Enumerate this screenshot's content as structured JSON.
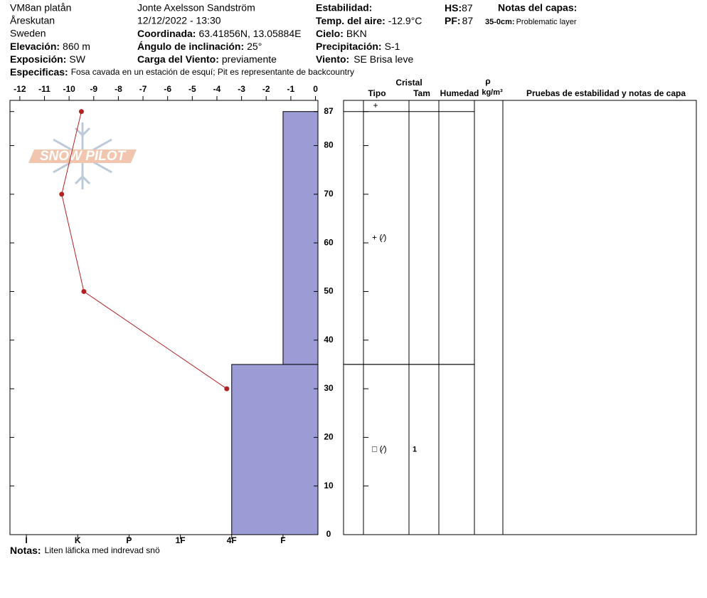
{
  "header": {
    "site": "VM8an platån",
    "area": "Åreskutan",
    "country": "Sweden",
    "elevation": {
      "label": "Elevación:",
      "value": "860 m"
    },
    "aspect": {
      "label": "Exposición:",
      "value": "SW"
    },
    "observer": "Jonte Axelsson Sandström",
    "datetime": "12/12/2022 - 13:30",
    "coordinates": {
      "label": "Coordinada:",
      "value": "63.41856N, 13.05884E"
    },
    "slope": {
      "label": "Ángulo de inclinación:",
      "value": "25°"
    },
    "wind_loading": {
      "label": "Carga del Viento:",
      "value": "previamente"
    },
    "stability_label": "Estabilidad:",
    "air_temp": {
      "label": "Temp. del aire:",
      "value": "-12.9°C"
    },
    "sky": {
      "label": "Cielo:",
      "value": "BKN"
    },
    "precipitation": {
      "label": "Precipitación:",
      "value": "S-1"
    },
    "wind": {
      "label": "Viento:",
      "value": "SE Brisa leve"
    },
    "hs": {
      "label": "HS:",
      "value": 87
    },
    "pf": {
      "label": "PF:",
      "value": 87
    },
    "layer_notes_title": "Notas del capas:",
    "layer_notes": [
      {
        "label": "35-0cm:",
        "value": "Problematic layer"
      }
    ],
    "specifics": {
      "label": "Especificas:",
      "value": "Fosa cavada en un estación de esquí; Pit es representante de backcountry"
    }
  },
  "notes": {
    "label": "Notas:",
    "value": "Liten läficka med indrevad snö"
  },
  "logo": "SNOW PILOT",
  "table_headers": {
    "crystal": "Cristal",
    "type": "Tipo",
    "size": "Tam",
    "moisture": "Humedad",
    "density_symbol": "ρ",
    "density_unit": "kg/m³",
    "tests": "Pruebas de estabilidad y notas de capa"
  },
  "chart_data": {
    "type": "snow-profile",
    "ylim": [
      0,
      89.3
    ],
    "yticks": [
      0,
      10,
      20,
      30,
      40,
      50,
      60,
      70,
      80,
      87
    ],
    "temperature": {
      "xlim": [
        -12.4,
        0.1
      ],
      "xticks": [
        -12,
        -11,
        -10,
        -9,
        -8,
        -7,
        -6,
        -5,
        -4,
        -3,
        -2,
        -1,
        0
      ],
      "depth": [
        87,
        70,
        50,
        30
      ],
      "values": [
        -9.5,
        -10.3,
        -9.4,
        -3.6
      ],
      "color": "#b22222"
    },
    "hardness": {
      "xlim": [
        6.32,
        0.32
      ],
      "color": "#9b9bd6",
      "xticks": [
        {
          "value": 6,
          "label": "I"
        },
        {
          "value": 5,
          "label": "K"
        },
        {
          "value": 4,
          "label": "P"
        },
        {
          "value": 3,
          "label": "1F"
        },
        {
          "value": 2,
          "label": "4F"
        },
        {
          "value": 1,
          "label": "F"
        }
      ]
    },
    "surface_grain": "+",
    "layers": [
      {
        "top": 87,
        "bottom": 35,
        "hardness": 1,
        "grain": "+ (⁄)"
      },
      {
        "top": 35,
        "bottom": 0,
        "hardness": 2,
        "grain": "□ (⁄)",
        "size": 1
      }
    ]
  }
}
